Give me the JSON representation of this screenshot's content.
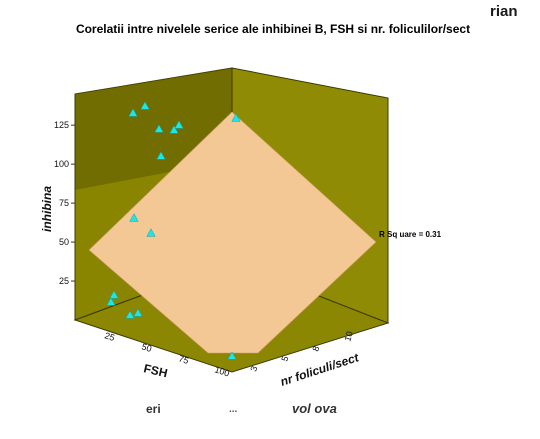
{
  "header_fragment": "rian",
  "footer_fragments": [
    "eri",
    "...",
    "vol ova"
  ],
  "colors": {
    "back_wall": "#8a8500",
    "back_wall_dark": "#5e5a00",
    "right_wall": "#908b05",
    "floor": "#8c8702",
    "plane": "#f3c895",
    "marker": "#1ee6e6",
    "edge": "#3c3a00"
  },
  "chart_data": {
    "type": "scatter3d",
    "title": "Corelatii intre nivelele serice ale inhibinei B, FSH si nr. foliculilor/sect",
    "r_square_label": "R Sq uare = 0.31",
    "axes": {
      "y": {
        "label": "inhibina",
        "ticks": [
          "25",
          "50",
          "75",
          "100",
          "125"
        ],
        "range": [
          0,
          145
        ]
      },
      "x": {
        "label": "FSH",
        "ticks": [
          "25",
          "50",
          "75",
          "100"
        ]
      },
      "z": {
        "label": "nr foliculi/sect",
        "ticks": [
          "3",
          "5",
          "8",
          "10"
        ]
      }
    },
    "regression_plane": true,
    "points_approx_inhibina": [
      141,
      137,
      131,
      130,
      134,
      113,
      139,
      71,
      61,
      18,
      12,
      7,
      6,
      0
    ]
  }
}
